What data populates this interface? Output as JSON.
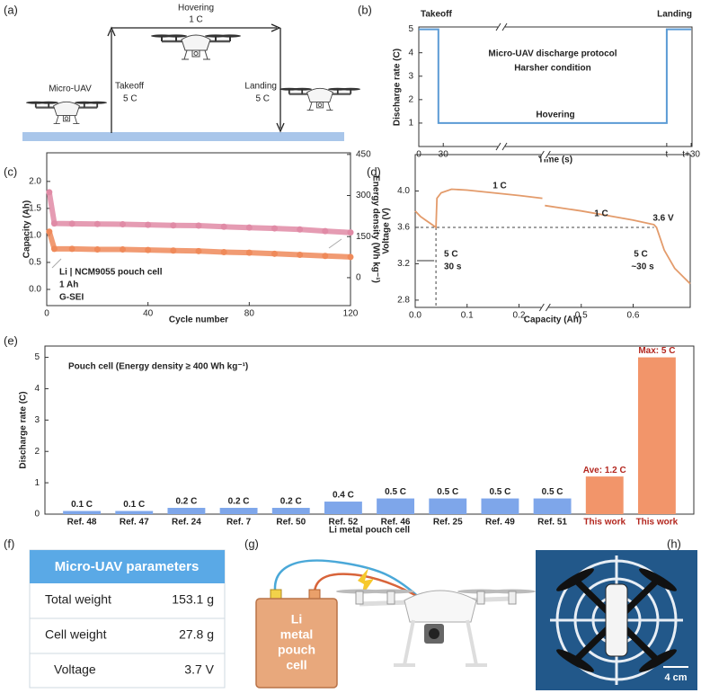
{
  "panel_a": {
    "panel_label": "(a)",
    "hover_label": "Hovering",
    "hover_rate": "1 C",
    "uav_label": "Micro-UAV",
    "takeoff_label": "Takeoff",
    "takeoff_rate": "5 C",
    "landing_label": "Landing",
    "landing_rate": "5 C"
  },
  "chart_data": [
    {
      "type": "step",
      "panel_label": "(b)",
      "title": "Micro-UAV discharge protocol",
      "subtitle": "Harsher condition",
      "annotations": [
        "Takeoff",
        "Hovering",
        "Landing"
      ],
      "x_label": "Time (s)",
      "y_label": "Discharge rate (C)",
      "x": [
        0,
        24,
        24,
        304,
        304,
        334
      ],
      "values": [
        5,
        5,
        1,
        1,
        5,
        5
      ],
      "color": "#5b9bd5",
      "xlim": [
        0,
        335
      ],
      "xticks": [
        0,
        30,
        {
          "value": 304,
          "label": "t"
        },
        {
          "value": 334,
          "label": "t+30"
        }
      ],
      "ylim": [
        0,
        5.1
      ],
      "yticks": [
        1,
        2,
        3,
        4,
        5
      ]
    },
    {
      "type": "scatter",
      "panel_label": "(c)",
      "annotations": [
        "Li | NCM9055 pouch cell",
        "1 Ah",
        "G-SEI"
      ],
      "x_label": "Cycle number",
      "y_label": "Capacity (Ah)",
      "y2_label": "Energy density (Wh kg⁻¹)",
      "x": [
        1,
        3,
        10,
        20,
        30,
        40,
        50,
        60,
        70,
        80,
        90,
        100,
        110,
        120
      ],
      "series": [
        {
          "color": "#ef8a5a",
          "values": [
            1.07,
            0.75,
            0.75,
            0.74,
            0.74,
            0.73,
            0.72,
            0.71,
            0.69,
            0.68,
            0.66,
            0.64,
            0.62,
            0.6
          ]
        },
        {
          "color": "#e08ba6",
          "axis": "y2",
          "values": [
            312,
            198,
            197,
            196,
            195,
            193,
            191,
            190,
            186,
            183,
            180,
            176,
            170,
            165
          ]
        }
      ],
      "xlim": [
        0,
        120
      ],
      "xticks": [
        0,
        40,
        80,
        120
      ],
      "ylim": [
        -0.3,
        2.53
      ],
      "yticks": [
        {
          "value": 0,
          "label": "0.0"
        },
        0.5,
        {
          "value": 1,
          "label": "1.0"
        },
        1.5,
        {
          "value": 2,
          "label": "2.0"
        }
      ],
      "y2lim": [
        -102,
        456
      ],
      "y2ticks": [
        0,
        150,
        300,
        450
      ]
    },
    {
      "type": "line",
      "panel_label": "(d)",
      "annotations": [
        "1 C",
        "1 C",
        "3.6 V",
        "5 C",
        "30 s",
        "5 C",
        "~30 s"
      ],
      "x_label": "Capacity (Ah)",
      "y_label": "Voltage (V)",
      "x": [
        0,
        0.01,
        0.02,
        0.03,
        0.04,
        0.042,
        0.05,
        0.07,
        0.1,
        0.15,
        0.2,
        0.245,
        0.3,
        0.43,
        0.5,
        0.55,
        0.6,
        0.64,
        0.645,
        0.66,
        0.68,
        0.71
      ],
      "values": [
        3.78,
        3.72,
        3.68,
        3.64,
        3.6,
        3.92,
        3.98,
        4.02,
        4.01,
        3.98,
        3.95,
        3.92,
        null,
        3.84,
        3.78,
        3.73,
        3.68,
        3.63,
        3.6,
        3.35,
        3.15,
        2.98
      ],
      "color": "#e39b6b",
      "hline": 3.6,
      "vline": 0.04,
      "xlim": [
        0,
        0.71
      ],
      "xbreak": [
        0.25,
        0.43
      ],
      "xticks": [
        {
          "value": 0,
          "label": "0.0"
        },
        0.1,
        0.2,
        0.5,
        0.6
      ],
      "ylim": [
        2.72,
        4.4
      ],
      "yticks": [
        2.8,
        3.2,
        3.6,
        {
          "value": 4,
          "label": "4.0"
        }
      ]
    },
    {
      "type": "bar",
      "panel_label": "(e)",
      "annotation": "Pouch cell (Energy density ≥ 400 Wh kg⁻¹)",
      "x_label": "Li metal pouch cell",
      "y_label": "Discharge rate (C)",
      "categories": [
        "Ref. 48",
        "Ref. 47",
        "Ref. 24",
        "Ref. 7",
        "Ref. 50",
        "Ref. 52",
        "Ref. 46",
        "Ref. 25",
        "Ref. 49",
        "Ref. 51",
        "This work",
        "This work"
      ],
      "values": [
        0.1,
        0.1,
        0.2,
        0.2,
        0.2,
        0.4,
        0.5,
        0.5,
        0.5,
        0.5,
        1.2,
        5
      ],
      "value_labels": [
        "0.1 C",
        "0.1 C",
        "0.2 C",
        "0.2 C",
        "0.2 C",
        "0.4 C",
        "0.5 C",
        "0.5 C",
        "0.5 C",
        "0.5 C",
        "Ave: 1.2 C",
        "Max: 5 C"
      ],
      "colors": [
        "#7ea6ea",
        "#7ea6ea",
        "#7ea6ea",
        "#7ea6ea",
        "#7ea6ea",
        "#7ea6ea",
        "#7ea6ea",
        "#7ea6ea",
        "#7ea6ea",
        "#7ea6ea",
        "#f2956a",
        "#f2956a"
      ],
      "label_colors": [
        "#222",
        "#222",
        "#222",
        "#222",
        "#222",
        "#222",
        "#222",
        "#222",
        "#222",
        "#222",
        "#b3261e",
        "#b3261e"
      ],
      "ylim": [
        0,
        5.36
      ],
      "yticks": [
        0,
        1,
        2,
        3,
        4,
        5
      ]
    }
  ],
  "table_f": {
    "panel_label": "(f)",
    "header": "Micro-UAV parameters",
    "rows": [
      [
        "Total weight",
        "153.1 g"
      ],
      [
        "Cell weight",
        "27.8 g"
      ],
      [
        "Voltage",
        "3.7 V"
      ]
    ]
  },
  "panel_g": {
    "panel_label": "(g)",
    "cell_label": [
      "Li",
      "metal",
      "pouch",
      "cell"
    ]
  },
  "panel_h": {
    "panel_label": "(h)",
    "scale_bar": "4 cm"
  }
}
